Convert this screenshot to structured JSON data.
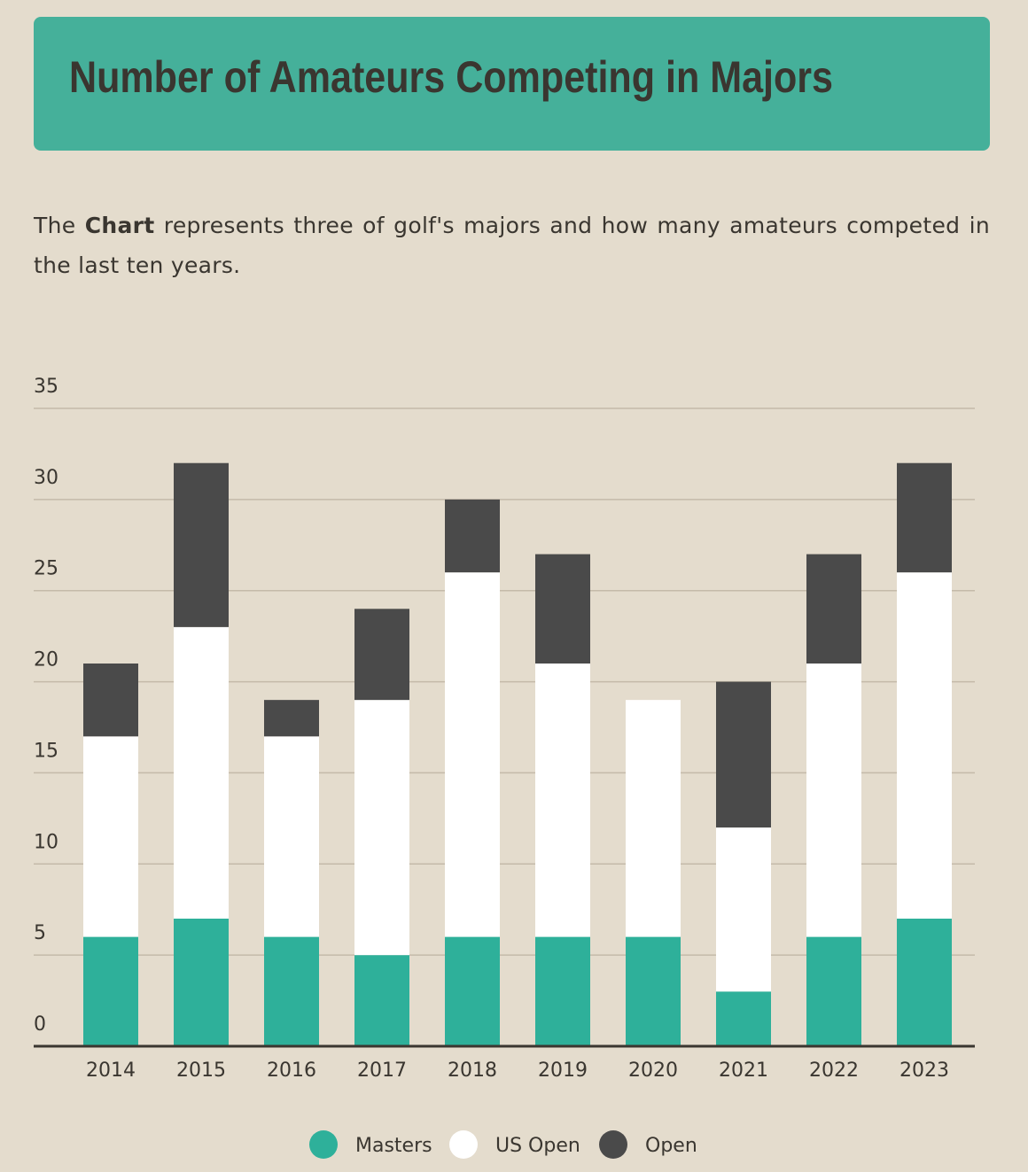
{
  "chart_data": {
    "type": "bar",
    "stacked": true,
    "title": "Number of Amateurs Competing in Majors",
    "intro_before": "The",
    "intro_bold": "Chart",
    "intro_after": "represents three of golf's majors and how many amateurs competed in the last ten years.",
    "categories": [
      "2014",
      "2015",
      "2016",
      "2017",
      "2018",
      "2019",
      "2020",
      "2021",
      "2022",
      "2023"
    ],
    "series": [
      {
        "name": "Masters",
        "color": "#2eb09a",
        "values": [
          6,
          7,
          6,
          5,
          6,
          6,
          6,
          3,
          6,
          7
        ]
      },
      {
        "name": "US Open",
        "color": "#ffffff",
        "values": [
          11,
          16,
          11,
          14,
          20,
          15,
          13,
          9,
          15,
          19
        ]
      },
      {
        "name": "Open",
        "color": "#4a4a4a",
        "values": [
          4,
          9,
          2,
          5,
          4,
          6,
          0,
          8,
          6,
          6
        ]
      }
    ],
    "ylim": [
      0,
      35
    ],
    "yticks": [
      0,
      5,
      10,
      15,
      20,
      25,
      30,
      35
    ],
    "grid": true,
    "legend": "bottom"
  }
}
